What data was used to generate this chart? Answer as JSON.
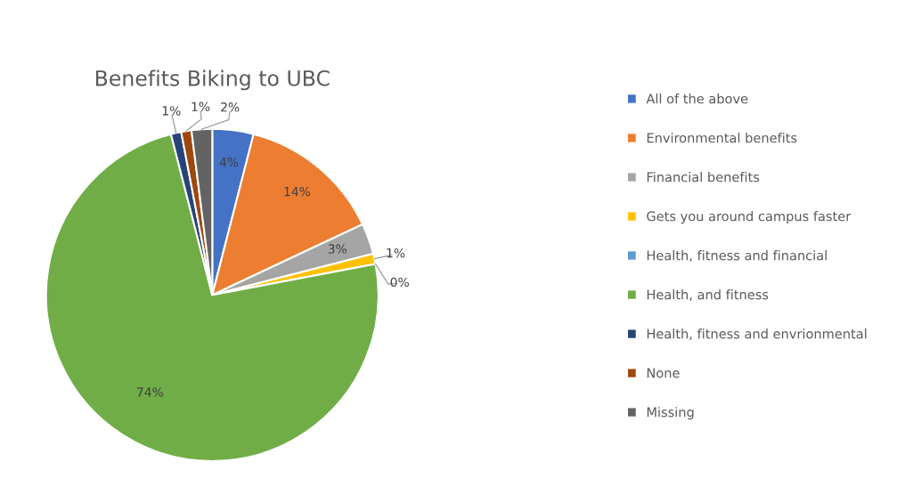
{
  "chart_data": {
    "type": "pie",
    "title": "Benefits Biking to UBC",
    "categories": [
      "All of the above",
      "Environmental benefits",
      "Financial benefits",
      "Gets you around campus faster",
      "Health, fitness and financial",
      "Health, and fitness",
      "Health, fitness and envrionmental",
      "None",
      "Missing"
    ],
    "values": [
      4,
      14,
      3,
      1,
      0,
      74,
      1,
      1,
      2
    ],
    "value_labels": [
      "4%",
      "14%",
      "3%",
      "1%",
      "0%",
      "74%",
      "1%",
      "1%",
      "2%"
    ],
    "colors": [
      "#4472c4",
      "#ed7d31",
      "#a5a5a5",
      "#ffc000",
      "#5b9bd5",
      "#70ad47",
      "#264478",
      "#9e480e",
      "#636363"
    ],
    "legend": "right"
  }
}
